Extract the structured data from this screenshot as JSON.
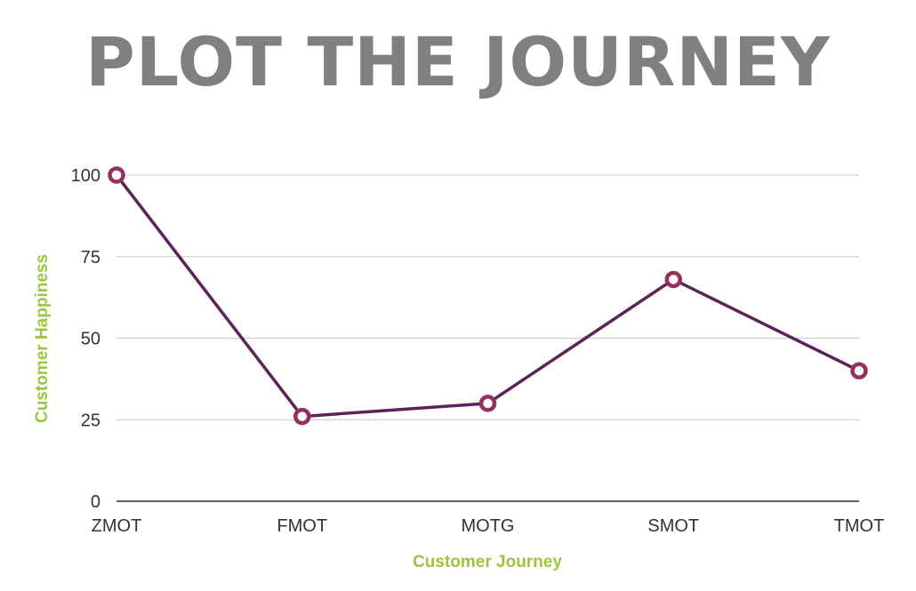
{
  "title": "PLOT THE JOURNEY",
  "colors": {
    "title": "#808080",
    "line": "#5a2556",
    "marker": "#96305f",
    "axis_title": "#9cc43f",
    "grid": "#c8c8c8",
    "axis": "#333333"
  },
  "chart_data": {
    "type": "line",
    "categories": [
      "ZMOT",
      "FMOT",
      "MOTG",
      "SMOT",
      "TMOT"
    ],
    "values": [
      100,
      26,
      30,
      68,
      40
    ],
    "xlabel": "Customer Journey",
    "ylabel": "Customer Happiness",
    "ylim": [
      0,
      100
    ],
    "yticks": [
      0,
      25,
      50,
      75,
      100
    ],
    "grid": true,
    "legend": "none"
  }
}
